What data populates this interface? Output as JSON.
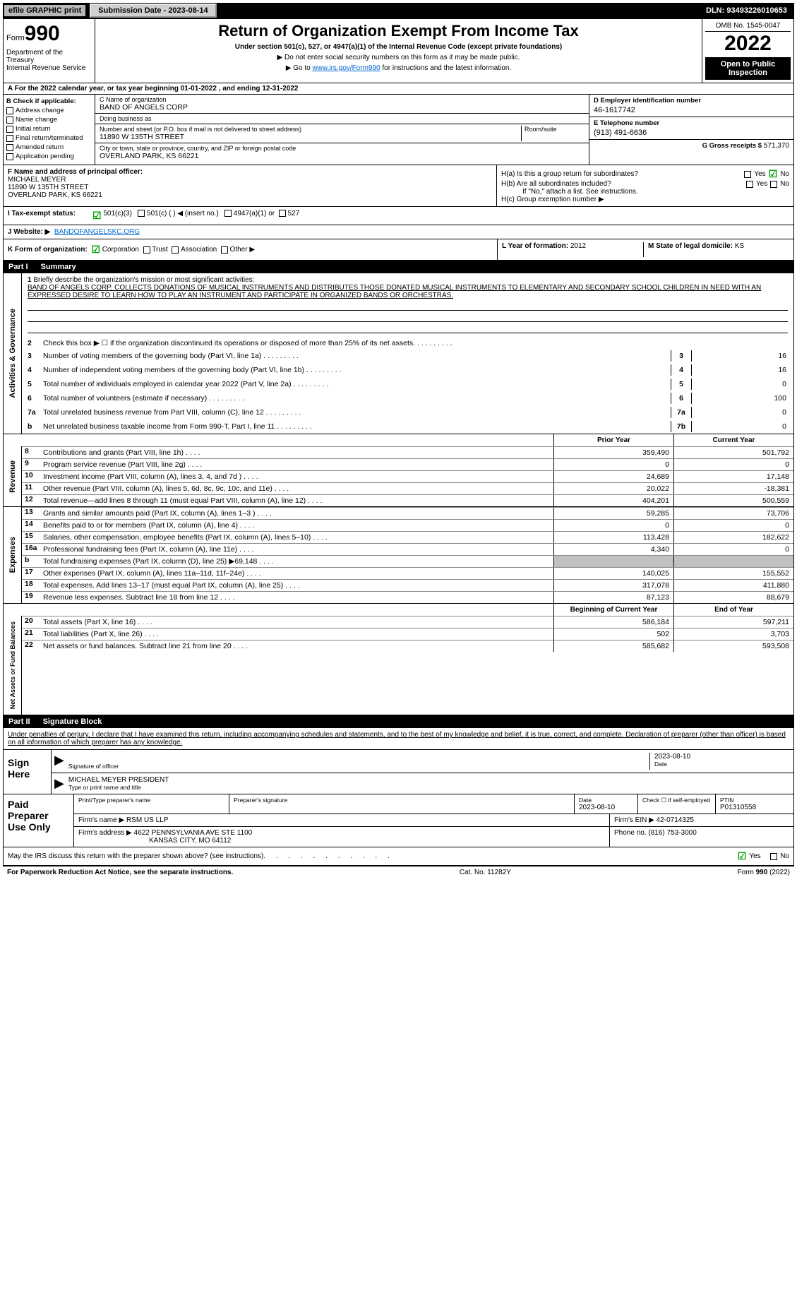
{
  "topbar": {
    "efile_label": "efile GRAPHIC print",
    "submission": "Submission Date - 2023-08-14",
    "dln": "DLN: 93493226010653"
  },
  "header": {
    "form_prefix": "Form",
    "form_number": "990",
    "title": "Return of Organization Exempt From Income Tax",
    "subtitle": "Under section 501(c), 527, or 4947(a)(1) of the Internal Revenue Code (except private foundations)",
    "note1": "▶ Do not enter social security numbers on this form as it may be made public.",
    "note2_pre": "▶ Go to ",
    "note2_link": "www.irs.gov/Form990",
    "note2_post": " for instructions and the latest information.",
    "dept": "Department of the Treasury\nInternal Revenue Service",
    "omb": "OMB No. 1545-0047",
    "year": "2022",
    "open": "Open to Public Inspection"
  },
  "section_a": "A For the 2022 calendar year, or tax year beginning 01-01-2022   , and ending 12-31-2022",
  "check_b": {
    "header": "B Check if applicable:",
    "items": [
      "Address change",
      "Name change",
      "Initial return",
      "Final return/terminated",
      "Amended return",
      "Application pending"
    ]
  },
  "block_c": {
    "name_label": "C Name of organization",
    "name": "BAND OF ANGELS CORP",
    "dba_label": "Doing business as",
    "dba": "",
    "addr_label": "Number and street (or P.O. box if mail is not delivered to street address)",
    "room_label": "Room/suite",
    "addr": "11890 W 135TH STREET",
    "city_label": "City or town, state or province, country, and ZIP or foreign postal code",
    "city": "OVERLAND PARK, KS  66221"
  },
  "block_d": {
    "ein_label": "D Employer identification number",
    "ein": "46-1617742",
    "phone_label": "E Telephone number",
    "phone": "(913) 491-6636",
    "gross_label": "G Gross receipts $",
    "gross": "571,370"
  },
  "block_f": {
    "label": "F  Name and address of principal officer:",
    "name": "MICHAEL MEYER",
    "addr1": "11890 W 135TH STREET",
    "addr2": "OVERLAND PARK, KS  66221"
  },
  "block_h": {
    "a_label": "H(a)  Is this a group return for subordinates?",
    "b_label": "H(b)  Are all subordinates included?",
    "b_note": "If \"No,\" attach a list. See instructions.",
    "c_label": "H(c)  Group exemption number ▶",
    "yes": "Yes",
    "no": "No"
  },
  "row_i": {
    "label": "I   Tax-exempt status:",
    "opt1": "501(c)(3)",
    "opt2": "501(c) (  ) ◀ (insert no.)",
    "opt3": "4947(a)(1) or",
    "opt4": "527"
  },
  "row_j": {
    "label": "J   Website: ▶",
    "val": "BANDOFANGELSKC.ORG"
  },
  "row_k": {
    "label": "K Form of organization:",
    "opts": [
      "Corporation",
      "Trust",
      "Association",
      "Other ▶"
    ]
  },
  "row_lm": {
    "l_label": "L Year of formation:",
    "l_val": "2012",
    "m_label": "M State of legal domicile:",
    "m_val": "KS"
  },
  "part1": {
    "label": "Part I",
    "title": "Summary"
  },
  "mission": {
    "num": "1",
    "label": "Briefly describe the organization's mission or most significant activities:",
    "text": "BAND OF ANGELS CORP. COLLECTS DONATIONS OF MUSICAL INSTRUMENTS AND DISTRIBUTES THOSE DONATED MUSICAL INSTRUMENTS TO ELEMENTARY AND SECONDARY SCHOOL CHILDREN IN NEED WITH AN EXPRESSED DESIRE TO LEARN HOW TO PLAY AN INSTRUMENT AND PARTICIPATE IN ORGANIZED BANDS OR ORCHESTRAS."
  },
  "gov_lines": [
    {
      "num": "2",
      "text": "Check this box ▶ ☐  if the organization discontinued its operations or disposed of more than 25% of its net assets.",
      "box": "",
      "val": ""
    },
    {
      "num": "3",
      "text": "Number of voting members of the governing body (Part VI, line 1a)",
      "box": "3",
      "val": "16"
    },
    {
      "num": "4",
      "text": "Number of independent voting members of the governing body (Part VI, line 1b)",
      "box": "4",
      "val": "16"
    },
    {
      "num": "5",
      "text": "Total number of individuals employed in calendar year 2022 (Part V, line 2a)",
      "box": "5",
      "val": "0"
    },
    {
      "num": "6",
      "text": "Total number of volunteers (estimate if necessary)",
      "box": "6",
      "val": "100"
    },
    {
      "num": "7a",
      "text": "Total unrelated business revenue from Part VIII, column (C), line 12",
      "box": "7a",
      "val": "0"
    },
    {
      "num": "b",
      "text": "Net unrelated business taxable income from Form 990-T, Part I, line 11",
      "box": "7b",
      "val": "0"
    }
  ],
  "col_headers": {
    "prior": "Prior Year",
    "current": "Current Year"
  },
  "revenue": [
    {
      "num": "8",
      "text": "Contributions and grants (Part VIII, line 1h)",
      "prior": "359,490",
      "current": "501,792"
    },
    {
      "num": "9",
      "text": "Program service revenue (Part VIII, line 2g)",
      "prior": "0",
      "current": "0"
    },
    {
      "num": "10",
      "text": "Investment income (Part VIII, column (A), lines 3, 4, and 7d )",
      "prior": "24,689",
      "current": "17,148"
    },
    {
      "num": "11",
      "text": "Other revenue (Part VIII, column (A), lines 5, 6d, 8c, 9c, 10c, and 11e)",
      "prior": "20,022",
      "current": "-18,381"
    },
    {
      "num": "12",
      "text": "Total revenue—add lines 8 through 11 (must equal Part VIII, column (A), line 12)",
      "prior": "404,201",
      "current": "500,559"
    }
  ],
  "expenses": [
    {
      "num": "13",
      "text": "Grants and similar amounts paid (Part IX, column (A), lines 1–3 )",
      "prior": "59,285",
      "current": "73,706"
    },
    {
      "num": "14",
      "text": "Benefits paid to or for members (Part IX, column (A), line 4)",
      "prior": "0",
      "current": "0"
    },
    {
      "num": "15",
      "text": "Salaries, other compensation, employee benefits (Part IX, column (A), lines 5–10)",
      "prior": "113,428",
      "current": "182,622"
    },
    {
      "num": "16a",
      "text": "Professional fundraising fees (Part IX, column (A), line 11e)",
      "prior": "4,340",
      "current": "0"
    },
    {
      "num": "b",
      "text": "Total fundraising expenses (Part IX, column (D), line 25) ▶69,148",
      "prior": "",
      "current": "",
      "shaded": true
    },
    {
      "num": "17",
      "text": "Other expenses (Part IX, column (A), lines 11a–11d, 11f–24e)",
      "prior": "140,025",
      "current": "155,552"
    },
    {
      "num": "18",
      "text": "Total expenses. Add lines 13–17 (must equal Part IX, column (A), line 25)",
      "prior": "317,078",
      "current": "411,880"
    },
    {
      "num": "19",
      "text": "Revenue less expenses. Subtract line 18 from line 12",
      "prior": "87,123",
      "current": "88,679"
    }
  ],
  "net_headers": {
    "prior": "Beginning of Current Year",
    "current": "End of Year"
  },
  "net_assets": [
    {
      "num": "20",
      "text": "Total assets (Part X, line 16)",
      "prior": "586,184",
      "current": "597,211"
    },
    {
      "num": "21",
      "text": "Total liabilities (Part X, line 26)",
      "prior": "502",
      "current": "3,703"
    },
    {
      "num": "22",
      "text": "Net assets or fund balances. Subtract line 21 from line 20",
      "prior": "585,682",
      "current": "593,508"
    }
  ],
  "part2": {
    "label": "Part II",
    "title": "Signature Block"
  },
  "sig": {
    "declaration": "Under penalties of perjury, I declare that I have examined this return, including accompanying schedules and statements, and to the best of my knowledge and belief, it is true, correct, and complete. Declaration of preparer (other than officer) is based on all information of which preparer has any knowledge.",
    "sign_here": "Sign Here",
    "sig_officer_lbl": "Signature of officer",
    "date_lbl": "Date",
    "date_val": "2023-08-10",
    "name_title": "MICHAEL MEYER  PRESIDENT",
    "name_title_lbl": "Type or print name and title"
  },
  "preparer": {
    "label": "Paid Preparer Use Only",
    "print_lbl": "Print/Type preparer's name",
    "sig_lbl": "Preparer's signature",
    "date_lbl": "Date",
    "date_val": "2023-08-10",
    "check_lbl": "Check ☐ if self-employed",
    "ptin_lbl": "PTIN",
    "ptin": "P01310558",
    "firm_lbl": "Firm's name    ▶",
    "firm": "RSM US LLP",
    "ein_lbl": "Firm's EIN ▶",
    "ein": "42-0714325",
    "addr_lbl": "Firm's address ▶",
    "addr1": "4622 PENNSYLVANIA AVE STE 1100",
    "addr2": "KANSAS CITY, MO  64112",
    "phone_lbl": "Phone no.",
    "phone": "(816) 753-3000"
  },
  "discuss": {
    "text": "May the IRS discuss this return with the preparer shown above? (see instructions)",
    "yes": "Yes",
    "no": "No"
  },
  "footer": {
    "left": "For Paperwork Reduction Act Notice, see the separate instructions.",
    "center": "Cat. No. 11282Y",
    "right": "Form 990 (2022)"
  },
  "vlabels": {
    "gov": "Activities & Governance",
    "rev": "Revenue",
    "exp": "Expenses",
    "net": "Net Assets or Fund Balances"
  }
}
